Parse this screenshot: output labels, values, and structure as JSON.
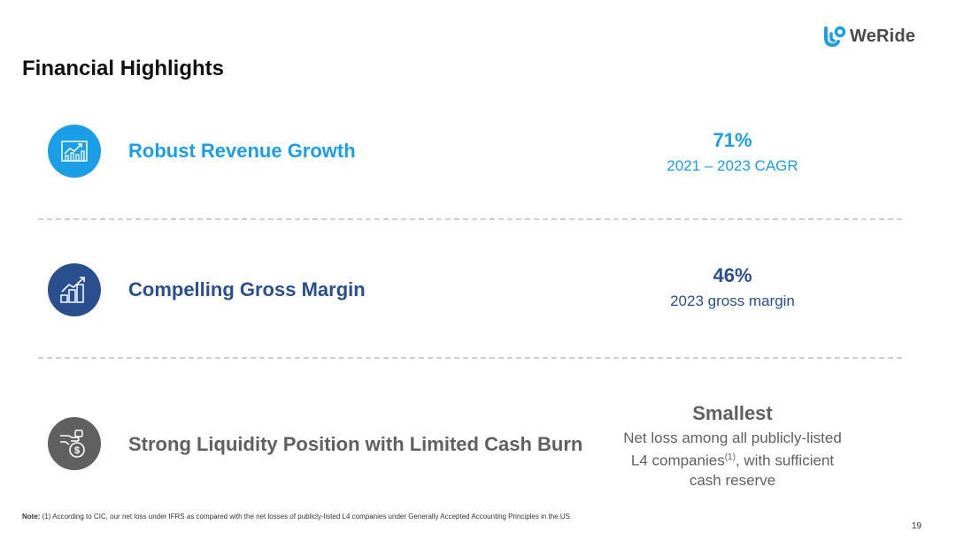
{
  "brand": {
    "name": "WeRide"
  },
  "title": "Financial Highlights",
  "highlights": [
    {
      "label": "Robust Revenue Growth",
      "metric": "71%",
      "metric_sub": "2021 – 2023 CAGR",
      "color": "#1a9ee8",
      "icon": "chart-growth-icon"
    },
    {
      "label": "Compelling Gross Margin",
      "metric": "46%",
      "metric_sub": "2023 gross margin",
      "color": "#2a4f8f",
      "icon": "bar-trend-icon"
    },
    {
      "label": "Strong Liquidity Position with Limited Cash Burn",
      "metric": "Smallest",
      "metric_sub_lines": [
        "Net loss among all publicly-listed",
        "L4 companies",
        ", with sufficient",
        "cash reserve"
      ],
      "superscript": "(1)",
      "color": "#606060",
      "icon": "money-hand-icon"
    }
  ],
  "footnote": {
    "prefix": "Note:",
    "text": "(1) According to CIC, our net loss under IFRS as compared with the net losses of publicly-listed L4 companies under Generally Accepted Accounting Principles in the US"
  },
  "page_number": "19"
}
